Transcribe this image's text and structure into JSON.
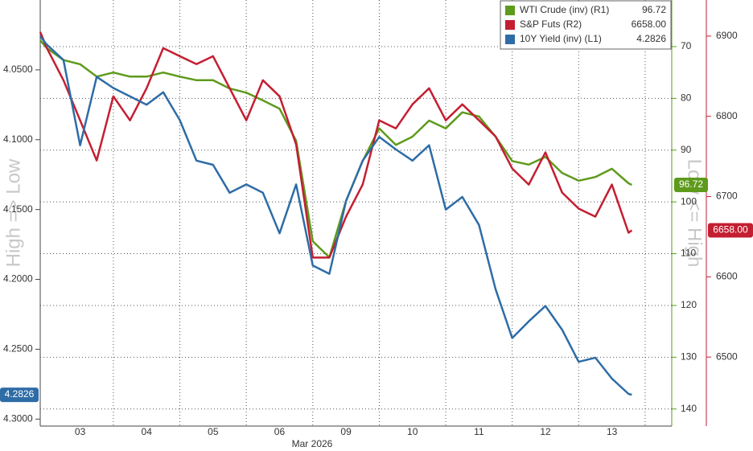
{
  "chart_data": {
    "type": "line",
    "x_label": "Mar 2026",
    "left_axis_title": "High => Low",
    "right_axis_title": "Low <= High",
    "x": [
      0.9,
      1.0,
      1.25,
      1.5,
      1.75,
      2.0,
      2.25,
      2.5,
      2.75,
      3.0,
      3.25,
      3.5,
      3.75,
      4.0,
      4.25,
      4.5,
      4.75,
      5.0,
      5.25,
      5.5,
      5.75,
      6.0,
      6.25,
      6.5,
      6.75,
      7.0,
      7.25,
      7.5,
      7.75,
      8.0,
      8.25,
      8.5,
      8.75,
      9.0,
      9.25,
      9.5,
      9.75,
      9.8
    ],
    "xlim": [
      0.9,
      10.4
    ],
    "xticks": [
      {
        "value": 1.5,
        "label": "03"
      },
      {
        "value": 2.5,
        "label": "04"
      },
      {
        "value": 3.5,
        "label": "05"
      },
      {
        "value": 4.5,
        "label": "06"
      },
      {
        "value": 5.5,
        "label": "09"
      },
      {
        "value": 6.5,
        "label": "10"
      },
      {
        "value": 7.5,
        "label": "11"
      },
      {
        "value": 8.5,
        "label": "12"
      },
      {
        "value": 9.5,
        "label": "13"
      }
    ],
    "ylim": [
      4.0,
      4.305
    ],
    "yinvert": true,
    "yticks": [
      {
        "value": 4.05,
        "label": "4.0500"
      },
      {
        "value": 4.1,
        "label": "4.1000"
      },
      {
        "value": 4.15,
        "label": "4.1500"
      },
      {
        "value": 4.2,
        "label": "4.2000"
      },
      {
        "value": 4.25,
        "label": "4.2500"
      },
      {
        "value": 4.3,
        "label": "4.3000"
      }
    ],
    "y2lim": [
      61,
      143.3
    ],
    "y2invert": true,
    "y2ticks": [
      70,
      80,
      90,
      100,
      110,
      120,
      130,
      140
    ],
    "y3lim": [
      6414,
      6945
    ],
    "y3invert": false,
    "y3ticks": [
      6500,
      6600,
      6700,
      6800,
      6900
    ],
    "grid": true,
    "legend": "top-right",
    "series": [
      {
        "name": "WTI Crude (inv) (R1)",
        "color": "#5e9a1c",
        "axis": "y2",
        "last_label": "96.72",
        "values": [
          68.8,
          70.3,
          72.6,
          73.4,
          75.8,
          75.0,
          75.8,
          75.8,
          75.0,
          75.8,
          76.5,
          76.5,
          78.1,
          78.9,
          80.4,
          82.0,
          88.2,
          107.6,
          110.7,
          99.8,
          92.1,
          85.8,
          89.0,
          87.4,
          84.3,
          85.8,
          82.7,
          83.5,
          87.4,
          92.1,
          92.8,
          91.3,
          94.4,
          95.9,
          95.2,
          93.6,
          96.4,
          96.72
        ]
      },
      {
        "name": "S&P Futs (R2)",
        "color": "#c41e31",
        "axis": "y3",
        "last_label": "6658.00",
        "values": [
          6905,
          6885,
          6845,
          6795,
          6745,
          6825,
          6795,
          6835,
          6885,
          6875,
          6865,
          6875,
          6835,
          6795,
          6845,
          6825,
          6765,
          6624,
          6624,
          6675,
          6715,
          6795,
          6785,
          6815,
          6835,
          6795,
          6815,
          6795,
          6775,
          6735,
          6715,
          6755,
          6705,
          6685,
          6675,
          6715,
          6655,
          6658
        ]
      },
      {
        "name": "10Y Yield (inv) (L1)",
        "color": "#2e6ca6",
        "axis": "y",
        "last_label": "4.2826",
        "values": [
          4.026,
          4.032,
          4.043,
          4.104,
          4.055,
          4.063,
          4.069,
          4.075,
          4.066,
          4.086,
          4.115,
          4.118,
          4.138,
          4.132,
          4.138,
          4.167,
          4.132,
          4.19,
          4.196,
          4.144,
          4.115,
          4.098,
          4.107,
          4.115,
          4.104,
          4.15,
          4.141,
          4.161,
          4.207,
          4.242,
          4.23,
          4.219,
          4.236,
          4.259,
          4.256,
          4.271,
          4.282,
          4.2826
        ]
      }
    ]
  }
}
